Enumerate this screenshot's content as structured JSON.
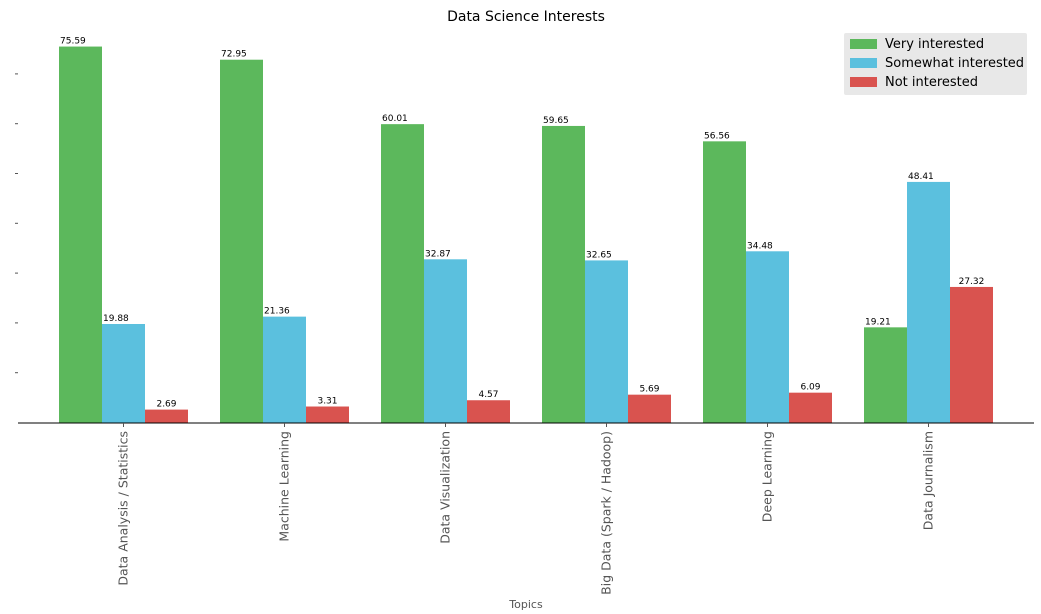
{
  "chart_data": {
    "type": "bar",
    "title": "Data Science Interests",
    "xlabel": "Topics",
    "ylabel": "",
    "ylim": [
      0,
      80
    ],
    "grid": false,
    "legend_position": "top-right",
    "categories": [
      "Data Analysis / Statistics",
      "Machine Learning",
      "Data Visualization",
      "Big Data (Spark / Hadoop)",
      "Deep Learning",
      "Data Journalism"
    ],
    "series": [
      {
        "name": "Very interested",
        "color": "#5cb85c",
        "values": [
          75.59,
          72.95,
          60.01,
          59.65,
          56.56,
          19.21
        ]
      },
      {
        "name": "Somewhat interested",
        "color": "#5bc0de",
        "values": [
          19.88,
          21.36,
          32.87,
          32.65,
          34.48,
          48.41
        ]
      },
      {
        "name": "Not interested",
        "color": "#d9534f",
        "values": [
          2.69,
          3.31,
          4.57,
          5.69,
          6.09,
          27.32
        ]
      }
    ]
  }
}
